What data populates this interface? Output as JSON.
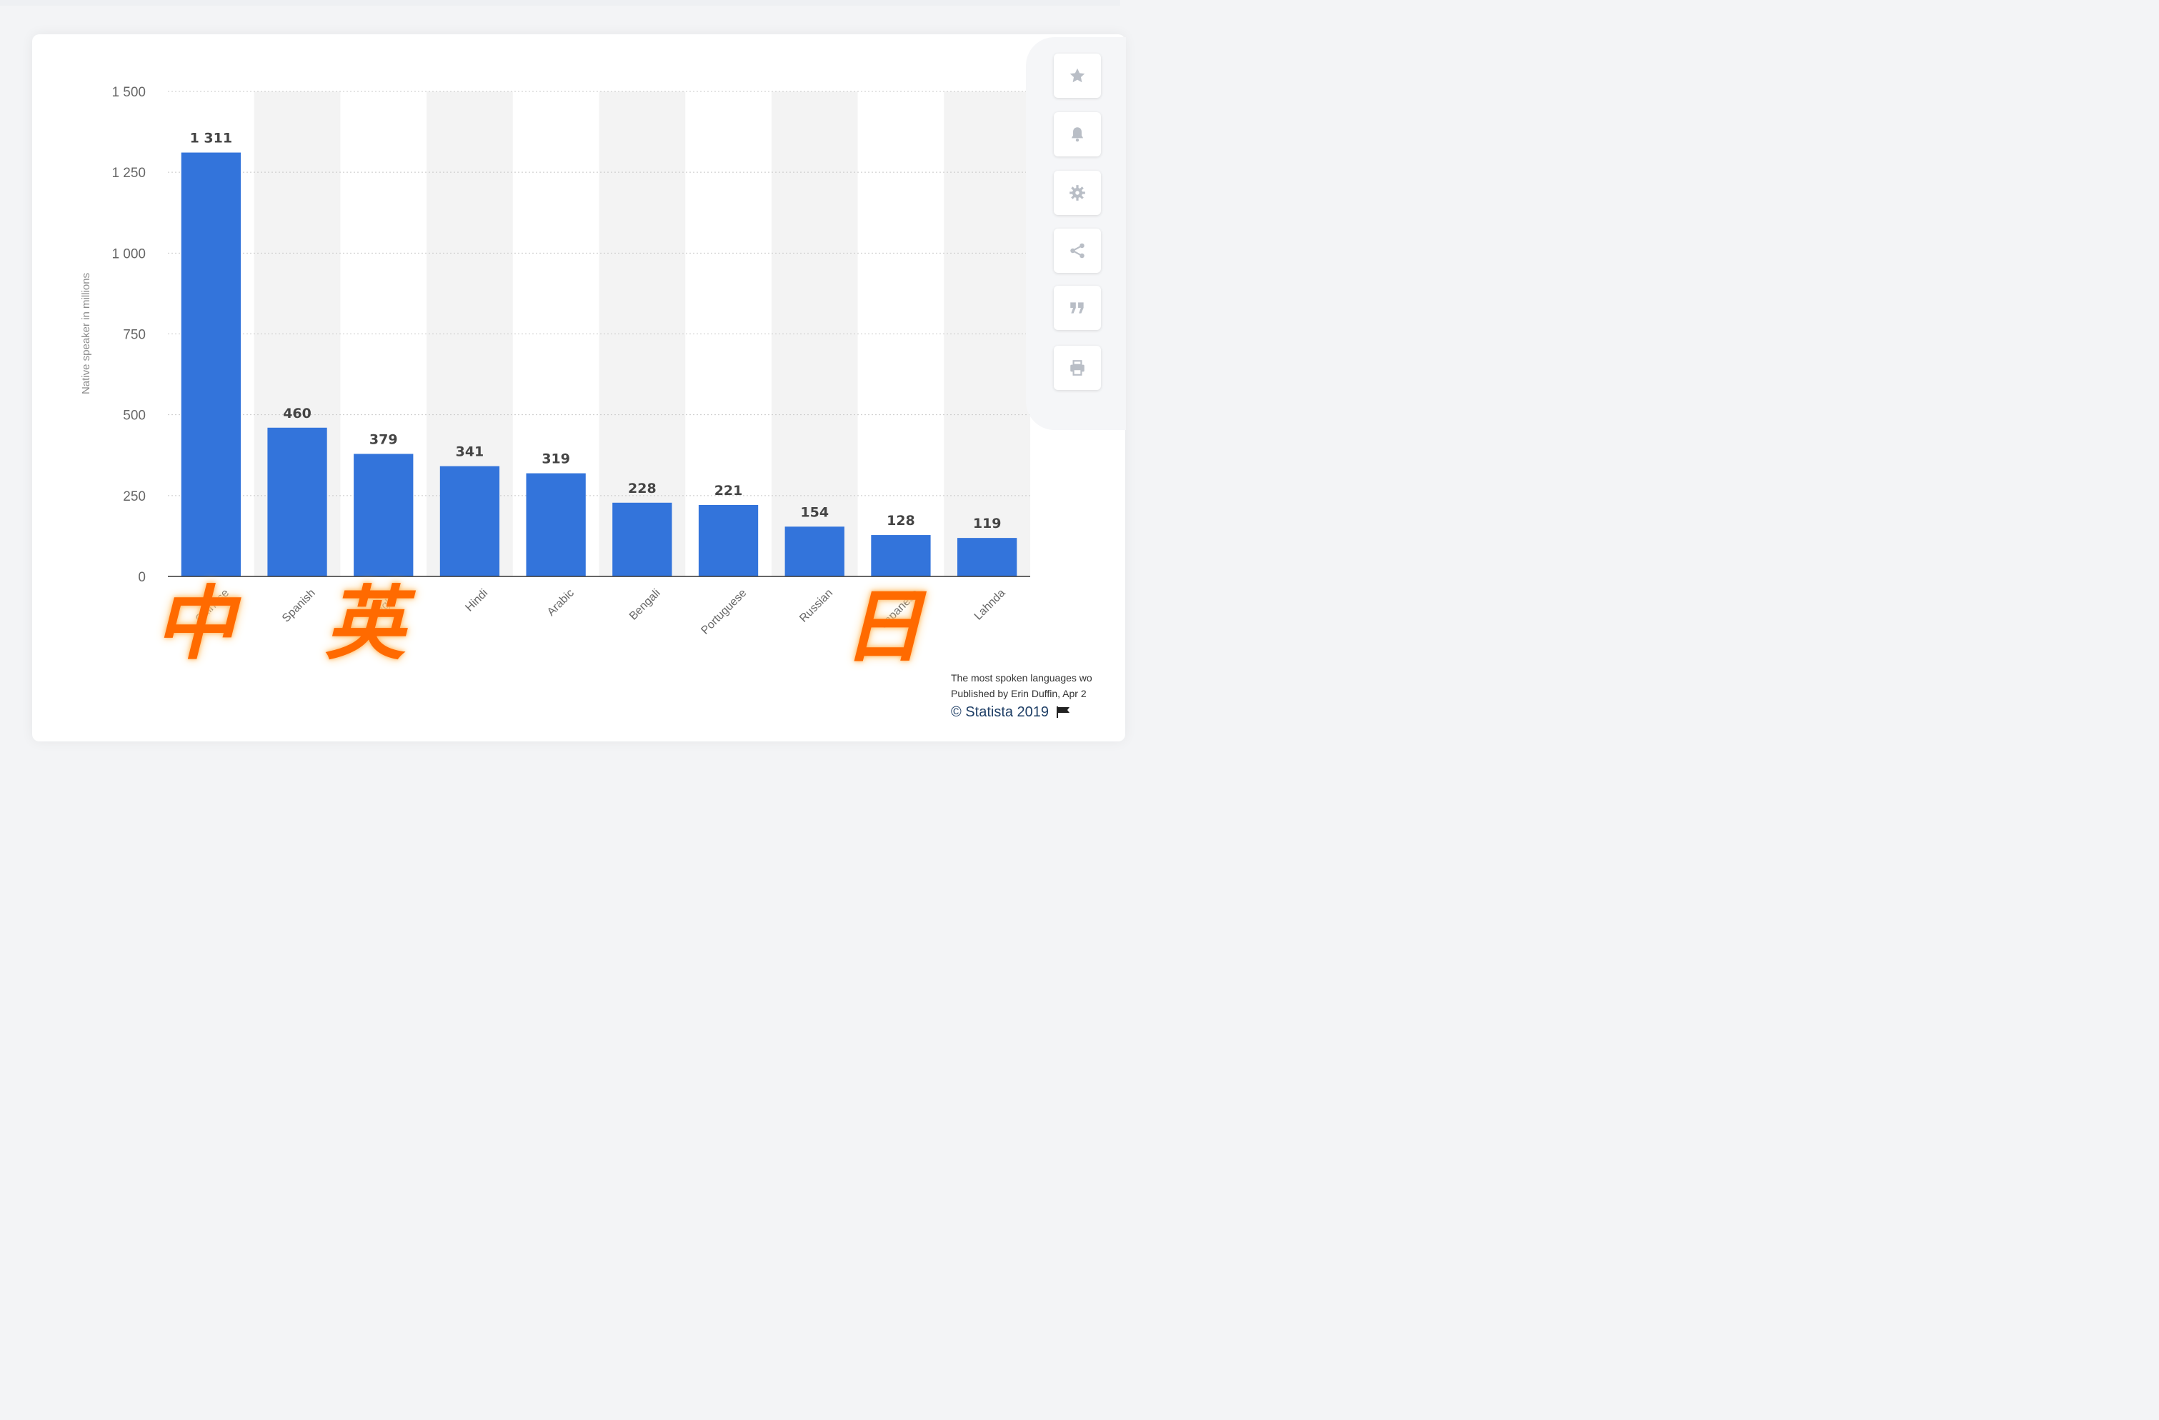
{
  "chart_data": {
    "type": "bar",
    "categories": [
      "Chinese",
      "Spanish",
      "English",
      "Hindi",
      "Arabic",
      "Bengali",
      "Portuguese",
      "Russian",
      "Japanese",
      "Lahnda"
    ],
    "visible_tick_labels": [
      "Chinese",
      "Spanish",
      "English",
      "Hindi",
      "Arabic",
      "Bengali",
      "Portuguese",
      "Russian",
      "Japanese",
      "Lahnda"
    ],
    "values": [
      1311,
      460,
      379,
      341,
      319,
      228,
      221,
      154,
      128,
      119
    ],
    "value_labels": [
      "1 311",
      "460",
      "379",
      "341",
      "319",
      "228",
      "221",
      "154",
      "128",
      "119"
    ],
    "ylabel": "Native speaker in millions",
    "ylim": [
      0,
      1500
    ],
    "yticks": [
      0,
      250,
      500,
      750,
      1000,
      1250,
      1500
    ],
    "ytick_labels": [
      "0",
      "250",
      "500",
      "750",
      "1 000",
      "1 250",
      "1 500"
    ],
    "grid": true,
    "bar_color": "#3374db",
    "band_color": "#f3f3f3"
  },
  "overlay_characters": [
    {
      "char": "中",
      "over_category": "Chinese"
    },
    {
      "char": "英",
      "over_category": "English"
    },
    {
      "char": "日",
      "over_category": "Japanese"
    }
  ],
  "overlay_color": "#ff6a00",
  "toolbar": {
    "buttons": [
      {
        "name": "favorite-button",
        "icon": "star-icon"
      },
      {
        "name": "notification-button",
        "icon": "bell-icon"
      },
      {
        "name": "settings-button",
        "icon": "gear-icon"
      },
      {
        "name": "share-button",
        "icon": "share-icon"
      },
      {
        "name": "cite-button",
        "icon": "quote-icon"
      },
      {
        "name": "print-button",
        "icon": "printer-icon"
      }
    ]
  },
  "source": {
    "line1": "The most spoken languages wo",
    "line2": "Published by Erin Duffin, Apr 2",
    "line3": "© Statista 2019",
    "flag_icon": "flag-icon"
  }
}
